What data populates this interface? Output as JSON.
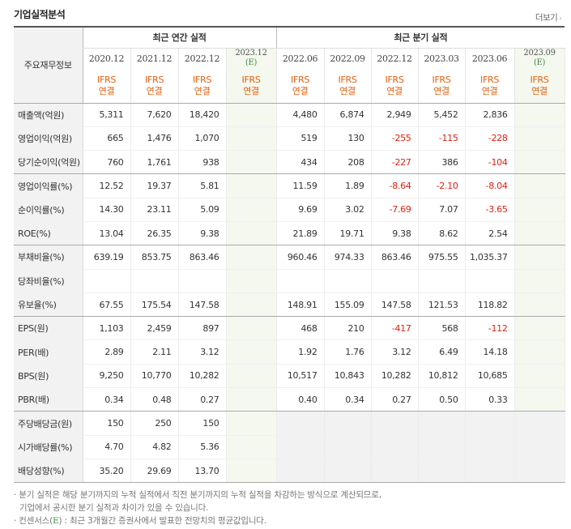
{
  "title": "기업실적분석",
  "more_label": "더보기",
  "annual_group": "최근 연간 실적",
  "quarter_group": "최근 분기 실적",
  "row_label_header": "주요재무정보",
  "annual_dates": [
    {
      "date": "2020.12",
      "est": ""
    },
    {
      "date": "2021.12",
      "est": ""
    },
    {
      "date": "2022.12",
      "est": ""
    },
    {
      "date": "2023.12",
      "est": "(E)"
    }
  ],
  "quarter_dates": [
    {
      "date": "2022.06",
      "est": ""
    },
    {
      "date": "2022.09",
      "est": ""
    },
    {
      "date": "2022.12",
      "est": ""
    },
    {
      "date": "2023.03",
      "est": ""
    },
    {
      "date": "2023.06",
      "est": ""
    },
    {
      "date": "2023.09",
      "est": "(E)"
    }
  ],
  "ifrs_line1": "IFRS",
  "ifrs_line2": "연결",
  "rows": [
    {
      "label": "매출액(억원)",
      "annual": [
        "5,311",
        "7,620",
        "18,420",
        ""
      ],
      "quarter": [
        "4,480",
        "6,874",
        "2,949",
        "5,452",
        "2,836",
        ""
      ]
    },
    {
      "label": "영업이익(억원)",
      "annual": [
        "665",
        "1,476",
        "1,070",
        ""
      ],
      "quarter": [
        "519",
        "130",
        "-255",
        "-115",
        "-228",
        ""
      ]
    },
    {
      "label": "당기순이익(억원)",
      "annual": [
        "760",
        "1,761",
        "938",
        ""
      ],
      "quarter": [
        "434",
        "208",
        "-227",
        "386",
        "-104",
        ""
      ]
    },
    {
      "label": "영업이익률(%)",
      "annual": [
        "12.52",
        "19.37",
        "5.81",
        ""
      ],
      "quarter": [
        "11.59",
        "1.89",
        "-8.64",
        "-2.10",
        "-8.04",
        ""
      ]
    },
    {
      "label": "순이익률(%)",
      "annual": [
        "14.30",
        "23.11",
        "5.09",
        ""
      ],
      "quarter": [
        "9.69",
        "3.02",
        "-7.69",
        "7.07",
        "-3.65",
        ""
      ]
    },
    {
      "label": "ROE(%)",
      "annual": [
        "13.04",
        "26.35",
        "9.38",
        ""
      ],
      "quarter": [
        "21.89",
        "19.71",
        "9.38",
        "8.62",
        "2.54",
        ""
      ]
    },
    {
      "label": "부채비율(%)",
      "annual": [
        "639.19",
        "853.75",
        "863.46",
        ""
      ],
      "quarter": [
        "960.46",
        "974.33",
        "863.46",
        "975.55",
        "1,035.37",
        ""
      ]
    },
    {
      "label": "당좌비율(%)",
      "annual": [
        "",
        "",
        "",
        ""
      ],
      "quarter": [
        "",
        "",
        "",
        "",
        "",
        ""
      ]
    },
    {
      "label": "유보율(%)",
      "annual": [
        "67.55",
        "175.54",
        "147.58",
        ""
      ],
      "quarter": [
        "148.91",
        "155.09",
        "147.58",
        "121.53",
        "118.82",
        ""
      ]
    },
    {
      "label": "EPS(원)",
      "annual": [
        "1,103",
        "2,459",
        "897",
        ""
      ],
      "quarter": [
        "468",
        "210",
        "-417",
        "568",
        "-112",
        ""
      ]
    },
    {
      "label": "PER(배)",
      "annual": [
        "2.89",
        "2.11",
        "3.12",
        ""
      ],
      "quarter": [
        "1.92",
        "1.76",
        "3.12",
        "6.49",
        "14.18",
        ""
      ]
    },
    {
      "label": "BPS(원)",
      "annual": [
        "9,250",
        "10,770",
        "10,282",
        ""
      ],
      "quarter": [
        "10,517",
        "10,843",
        "10,282",
        "10,812",
        "10,685",
        ""
      ]
    },
    {
      "label": "PBR(배)",
      "annual": [
        "0.34",
        "0.48",
        "0.27",
        ""
      ],
      "quarter": [
        "0.40",
        "0.34",
        "0.27",
        "0.50",
        "0.33",
        ""
      ]
    },
    {
      "label": "주당배당금(원)",
      "annual": [
        "150",
        "250",
        "150",
        ""
      ],
      "quarter": [
        "",
        "",
        "",
        "",
        "",
        ""
      ]
    },
    {
      "label": "시가배당률(%)",
      "annual": [
        "4.70",
        "4.82",
        "5.36",
        ""
      ],
      "quarter": [
        "",
        "",
        "",
        "",
        "",
        ""
      ]
    },
    {
      "label": "배당성향(%)",
      "annual": [
        "35.20",
        "29.69",
        "13.70",
        ""
      ],
      "quarter": [
        "",
        "",
        "",
        "",
        "",
        ""
      ]
    }
  ],
  "notes": {
    "line1": "· 분기 실적은 해당 분기까지의 누적 실적에서 직전 분기까지의 누적 실적을 차감하는 방식으로 계산되므로,",
    "line2": "기업에서 공시한 분기 실적과 차이가 있을 수 있습니다.",
    "line3_pre": "· 컨센서스(",
    "line3_e": "E",
    "line3_post": ") : 최근 3개월간 증권사에서 발표한 전망치의 평균값입니다."
  },
  "colors": {
    "negative": "#e0200f",
    "ifrs": "#e0600f",
    "estimate_bg": "#f4f8ef",
    "label_bg": "#f2f2f2"
  }
}
